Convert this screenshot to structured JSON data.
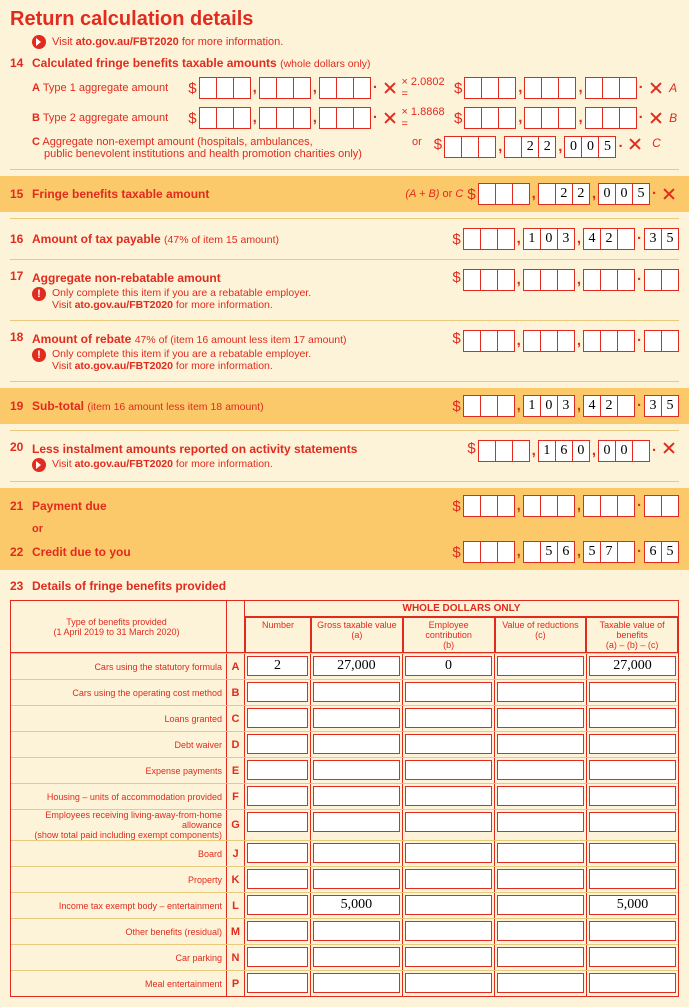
{
  "title": "Return calculation details",
  "visit_prefix": "Visit",
  "visit_link": "ato.gov.au/FBT2020",
  "visit_suffix": "for more information.",
  "item14": {
    "num": "14",
    "heading": "Calculated fringe benefits taxable amounts",
    "heading_note": "(whole dollars only)",
    "rowA": {
      "letter": "A",
      "label": "Type 1 aggregate amount",
      "mult": "× 2.0802 =",
      "right_letter": "A"
    },
    "rowB": {
      "letter": "B",
      "label": "Type 2 aggregate amount",
      "mult": "× 1.8868 =",
      "right_letter": "B"
    },
    "rowC": {
      "letter": "C",
      "label": "Aggregate non-exempt amount (hospitals, ambulances,",
      "label2": "public benevolent institutions and health promotion charities only)",
      "or": "or",
      "right_letter": "C",
      "digits": [
        "",
        "",
        "",
        "",
        "2",
        "2",
        "0",
        "0",
        "5"
      ]
    }
  },
  "item15": {
    "num": "15",
    "label": "Fringe benefits taxable amount",
    "formula": "(A + B)",
    "or": "or",
    "c": "C",
    "digits": [
      "",
      "",
      "",
      "",
      "2",
      "2",
      "0",
      "0",
      "5"
    ]
  },
  "item16": {
    "num": "16",
    "label": "Amount of tax payable",
    "note": "(47% of item 15 amount)",
    "digits": [
      "",
      "",
      "",
      "1",
      "0",
      "3",
      "4",
      "2"
    ],
    "cents": [
      "3",
      "5"
    ]
  },
  "item17": {
    "num": "17",
    "label": "Aggregate non-rebatable amount",
    "note1": "Only complete this item if you are a rebatable employer.",
    "note2p": "Visit",
    "note2l": "ato.gov.au/FBT2020",
    "note2s": "for more information."
  },
  "item18": {
    "num": "18",
    "label": "Amount of rebate",
    "note": "47% of (item 16 amount less item 17 amount)",
    "note1": "Only complete this item if you are a rebatable employer.",
    "note2p": "Visit",
    "note2l": "ato.gov.au/FBT2020",
    "note2s": "for more information."
  },
  "item19": {
    "num": "19",
    "label": "Sub-total",
    "note": "(item 16 amount less item 18 amount)",
    "digits": [
      "",
      "",
      "",
      "1",
      "0",
      "3",
      "4",
      "2"
    ],
    "cents": [
      "3",
      "5"
    ]
  },
  "item20": {
    "num": "20",
    "label": "Less instalment amounts reported on activity statements",
    "digits": [
      "",
      "",
      "",
      "1",
      "6",
      "0",
      "0",
      "0"
    ]
  },
  "item21": {
    "num": "21",
    "label": "Payment due",
    "or": "or"
  },
  "item22": {
    "num": "22",
    "label": "Credit due to you",
    "digits": [
      "",
      "",
      "",
      "",
      "5",
      "6",
      "5",
      "7"
    ],
    "cents": [
      "6",
      "5"
    ]
  },
  "item23": {
    "num": "23",
    "label": "Details of fringe benefits provided",
    "whole": "WHOLE DOLLARS ONLY",
    "h_type": "Type of benefits provided",
    "h_type2": "(1 April 2019 to 31 March 2020)",
    "h_number": "Number",
    "h_gross": "Gross taxable value\n(a)",
    "h_emp": "Employee contribution\n(b)",
    "h_val": "Value of reductions\n(c)",
    "h_tax": "Taxable value of benefits\n(a) – (b) – (c)",
    "rows": [
      {
        "type": "Cars using the statutory formula",
        "letter": "A",
        "number": "2",
        "gross": "27,000",
        "emp": "0",
        "val": "",
        "tax": "27,000"
      },
      {
        "type": "Cars using the operating cost method",
        "letter": "B"
      },
      {
        "type": "Loans granted",
        "letter": "C"
      },
      {
        "type": "Debt waiver",
        "letter": "D"
      },
      {
        "type": "Expense payments",
        "letter": "E"
      },
      {
        "type": "Housing – units of accommodation provided",
        "letter": "F"
      },
      {
        "type": "Employees receiving living-away-from-home allowance\n(show total paid including exempt components)",
        "letter": "G"
      },
      {
        "type": "Board",
        "letter": "J"
      },
      {
        "type": "Property",
        "letter": "K"
      },
      {
        "type": "Income tax exempt body – entertainment",
        "letter": "L",
        "number": "",
        "gross": "5,000",
        "emp": "",
        "val": "",
        "tax": "5,000"
      },
      {
        "type": "Other benefits (residual)",
        "letter": "M"
      },
      {
        "type": "Car parking",
        "letter": "N"
      },
      {
        "type": "Meal entertainment",
        "letter": "P"
      }
    ]
  }
}
